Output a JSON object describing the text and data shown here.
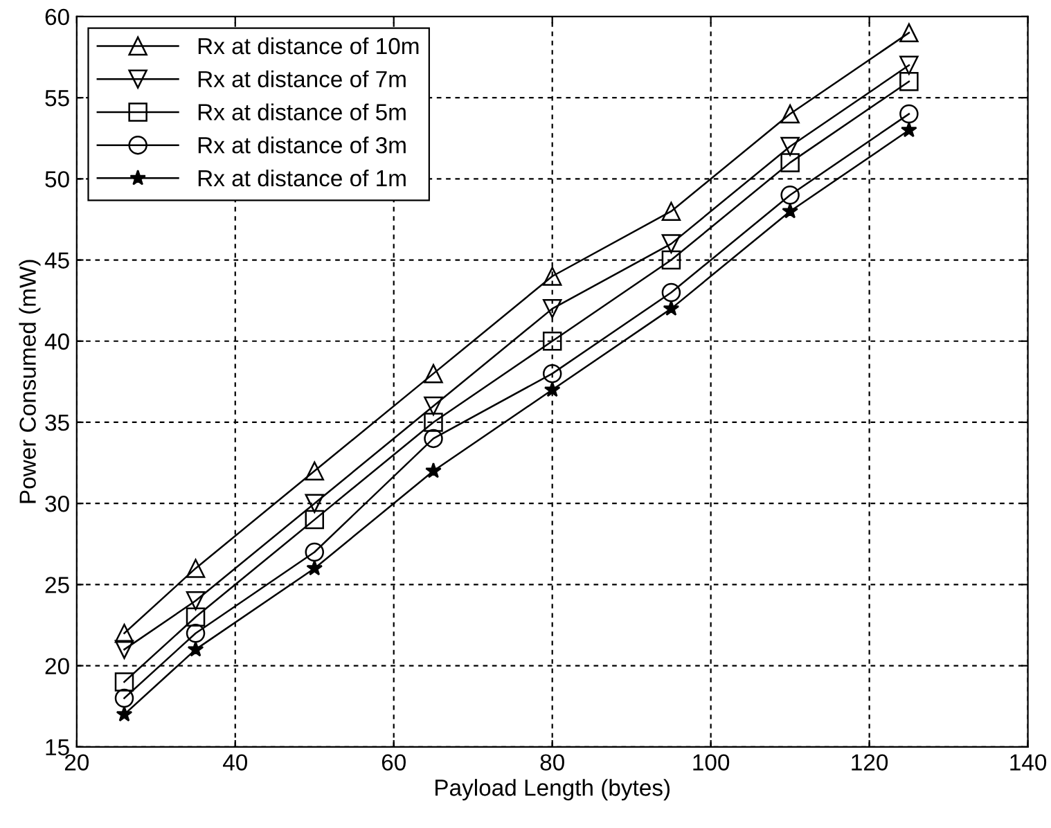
{
  "chart_data": {
    "type": "line",
    "xlabel": "Payload Length (bytes)",
    "ylabel": "Power Consumed (mW)",
    "x": [
      26,
      35,
      50,
      65,
      80,
      95,
      110,
      125
    ],
    "series": [
      {
        "name": "Rx at distance of 10m",
        "color": "#000000",
        "marker": "triangle",
        "values": [
          22,
          26,
          32,
          38,
          44,
          48,
          54,
          59
        ]
      },
      {
        "name": "Rx at distance of 7m",
        "color": "#000000",
        "marker": "triangle_down",
        "values": [
          21,
          24,
          30,
          36,
          42,
          46,
          52,
          57
        ]
      },
      {
        "name": "Rx at distance of 5m",
        "color": "#000000",
        "marker": "square",
        "values": [
          19,
          23,
          29,
          35,
          40,
          45,
          51,
          56
        ]
      },
      {
        "name": "Rx at distance of 3m",
        "color": "#000000",
        "marker": "circle",
        "values": [
          18,
          22,
          27,
          34,
          38,
          43,
          49,
          54
        ]
      },
      {
        "name": "Rx at distance of 1m",
        "color": "#000000",
        "marker": "star",
        "values": [
          17,
          21,
          26,
          32,
          37,
          42,
          48,
          53
        ]
      }
    ],
    "xlim": [
      20,
      140
    ],
    "xticks": [
      20,
      40,
      60,
      80,
      100,
      120,
      140
    ],
    "ylim": [
      15,
      60
    ],
    "yticks": [
      15,
      20,
      25,
      30,
      35,
      40,
      45,
      50,
      55,
      60
    ],
    "grid": true,
    "legend": "top left",
    "line_style": "solid"
  }
}
